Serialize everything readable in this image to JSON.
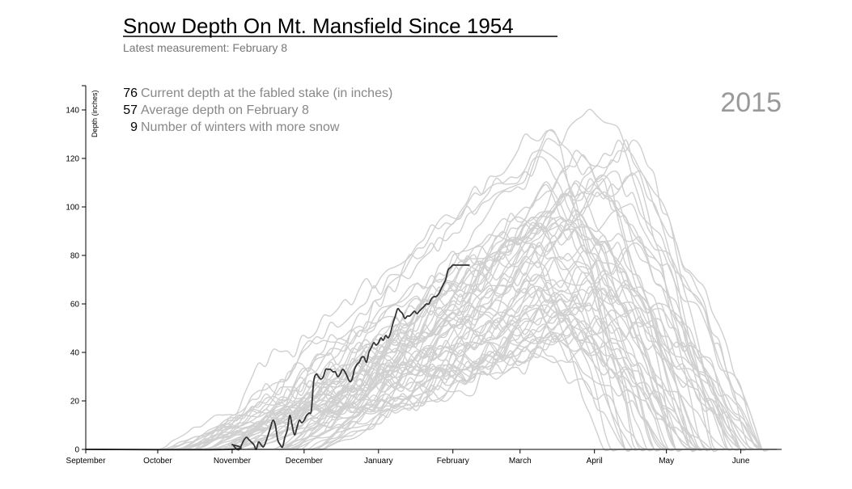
{
  "header": {
    "title": "Snow Depth On Mt. Mansfield Since 1954",
    "subtitle": "Latest measurement: February 8"
  },
  "stats": [
    {
      "value": "76",
      "label": "Current depth at the fabled stake (in inches)"
    },
    {
      "value": "57",
      "label": "Average depth on February 8"
    },
    {
      "value": "9",
      "label": "Number of winters with more snow"
    }
  ],
  "year_label": "2015",
  "colors": {
    "current": "#333333",
    "history": "#d0d0d0",
    "stat_label": "#888888",
    "year": "#999999"
  },
  "chart_data": {
    "type": "line",
    "title": "Snow Depth On Mt. Mansfield Since 1954",
    "ylabel": "Depth (inches)",
    "xlabel": "",
    "ylim": [
      0,
      150
    ],
    "yticks": [
      0,
      20,
      40,
      60,
      80,
      100,
      120,
      140
    ],
    "xlim_days": [
      0,
      290
    ],
    "x_unit": "days since September 1",
    "x_tick_labels": [
      {
        "day": 0,
        "label": "September"
      },
      {
        "day": 30,
        "label": "October"
      },
      {
        "day": 61,
        "label": "November"
      },
      {
        "day": 91,
        "label": "December"
      },
      {
        "day": 122,
        "label": "January"
      },
      {
        "day": 153,
        "label": "February"
      },
      {
        "day": 181,
        "label": "March"
      },
      {
        "day": 212,
        "label": "April"
      },
      {
        "day": 242,
        "label": "May"
      },
      {
        "day": 273,
        "label": "June"
      }
    ],
    "grid": false,
    "current_series": {
      "name": "2015",
      "x": [
        0,
        60,
        61,
        62,
        63,
        64,
        65,
        66,
        67,
        68,
        70,
        71,
        72,
        73,
        74,
        75,
        76,
        77,
        78,
        79,
        80,
        81,
        82,
        83,
        84,
        85,
        86,
        87,
        88,
        89,
        90,
        91,
        92,
        93,
        94,
        95,
        96,
        97,
        98,
        99,
        100,
        101,
        102,
        103,
        104,
        105,
        106,
        107,
        108,
        109,
        110,
        111,
        112,
        113,
        114,
        115,
        116,
        117,
        118,
        119,
        120,
        121,
        122,
        123,
        124,
        125,
        126,
        127,
        128,
        129,
        130,
        131,
        132,
        133,
        134,
        135,
        136,
        137,
        138,
        139,
        140,
        141,
        142,
        143,
        144,
        145,
        146,
        147,
        148,
        149,
        150,
        151,
        152,
        153,
        154,
        155,
        156,
        157,
        158,
        159,
        160
      ],
      "y": [
        0,
        0,
        2,
        1,
        0,
        0,
        2,
        4,
        5,
        4,
        2,
        0,
        3,
        2,
        1,
        3,
        6,
        9,
        12,
        10,
        4,
        2,
        1,
        5,
        8,
        14,
        10,
        6,
        9,
        12,
        11,
        12,
        14,
        15,
        16,
        28,
        31,
        30,
        29,
        30,
        33,
        33,
        33,
        32,
        32,
        30,
        31,
        33,
        32,
        30,
        28,
        29,
        33,
        35,
        36,
        38,
        38,
        36,
        40,
        42,
        44,
        43,
        44,
        46,
        45,
        47,
        46,
        48,
        52,
        55,
        58,
        57,
        56,
        54,
        55,
        55,
        56,
        57,
        56,
        57,
        58,
        59,
        60,
        60,
        62,
        63,
        63,
        64,
        66,
        68,
        70,
        74,
        75,
        76,
        76,
        76,
        76,
        76,
        76,
        76,
        76
      ]
    },
    "history_note": "One gray line per earlier winter (1954–2014); peaks mostly between March and April, reaching up to about 147 inches."
  }
}
